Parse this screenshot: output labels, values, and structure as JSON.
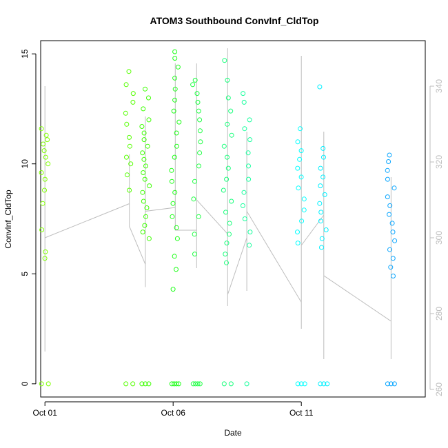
{
  "chart_data": {
    "type": "scatter",
    "title": "ATOM3 Southbound ConvInf_CldTop",
    "xlabel": "Date",
    "ylabel": "ConvInf_CldTop",
    "x_axis": {
      "type": "date",
      "range": [
        "2016-09-30T20:00",
        "2016-10-15T20:00"
      ],
      "ticks": [
        {
          "date": "2016-10-01",
          "label": "Oct 01"
        },
        {
          "date": "2016-10-06",
          "label": "Oct 06"
        },
        {
          "date": "2016-10-11",
          "label": "Oct 11"
        }
      ]
    },
    "y_left": {
      "range": [
        -0.6,
        15.6
      ],
      "ticks": [
        0,
        5,
        10,
        15
      ]
    },
    "y_right": {
      "range": [
        258,
        352
      ],
      "ticks": [
        260,
        280,
        300,
        320,
        340
      ],
      "color": "#bdbdbd"
    },
    "grid": false,
    "legend": "none",
    "point_style": "open-circle",
    "clusters": [
      {
        "date": "2016-10-01T00:00",
        "color": "#7fff00",
        "y": [
          5.7,
          6.0,
          7.0,
          8.2,
          8.8,
          9.3,
          9.6,
          10.0,
          10.3,
          10.6,
          10.9,
          11.1,
          11.3,
          11.6
        ],
        "zeros": 2
      },
      {
        "date": "2016-10-04T07:00",
        "color": "#55ff00",
        "y": [
          8.8,
          9.5,
          10.0,
          10.3,
          10.8,
          11.2,
          11.8,
          12.3,
          12.8,
          13.2,
          13.6,
          14.2
        ],
        "zeros": 2
      },
      {
        "date": "2016-10-04T22:00",
        "color": "#3cff00",
        "y": [
          6.6,
          6.9,
          7.2,
          7.6,
          8.0,
          8.3,
          8.7,
          9.0,
          9.3,
          9.6,
          9.9,
          10.2,
          10.5,
          10.8,
          11.1,
          11.4,
          11.7,
          12.0,
          12.5,
          13.0,
          13.4
        ],
        "zeros": 3
      },
      {
        "date": "2016-10-06T02:00",
        "color": "#1cff16",
        "y": [
          4.3,
          5.2,
          5.8,
          6.6,
          7.1,
          7.6,
          8.2,
          8.7,
          9.2,
          9.7,
          10.3,
          10.8,
          11.4,
          11.9,
          12.4,
          12.9,
          13.4,
          13.9,
          14.4,
          14.8,
          15.1
        ],
        "zeros": 4
      },
      {
        "date": "2016-10-06T22:00",
        "color": "#1eff43",
        "y": [
          5.9,
          6.8,
          7.6,
          8.4,
          9.2,
          9.9,
          10.5,
          11.0,
          11.5,
          12.0,
          12.4,
          12.8,
          13.2,
          13.6,
          13.8
        ],
        "zeros": 4
      },
      {
        "date": "2016-10-08T03:00",
        "color": "#16ff7a",
        "y": [
          5.5,
          5.9,
          6.4,
          6.8,
          7.3,
          7.8,
          8.3,
          8.8,
          9.3,
          9.8,
          10.3,
          10.8,
          11.3,
          11.8,
          12.4,
          13.0,
          13.8,
          14.7
        ],
        "zeros": 2
      },
      {
        "date": "2016-10-08T21:00",
        "color": "#19ff9e",
        "y": [
          6.3,
          6.9,
          7.5,
          8.1,
          8.7,
          9.3,
          9.9,
          10.5,
          11.1,
          11.6,
          12.0,
          12.8,
          13.2
        ],
        "zeros": 1
      },
      {
        "date": "2016-10-11T00:00",
        "color": "#00ffff",
        "y": [
          6.4,
          6.9,
          7.4,
          7.9,
          8.4,
          8.9,
          9.4,
          9.8,
          10.2,
          10.6,
          11.0,
          11.6
        ],
        "zeros": 3
      },
      {
        "date": "2016-10-11T21:00",
        "color": "#00f0ff",
        "y": [
          6.2,
          6.6,
          7.0,
          7.4,
          7.8,
          8.2,
          8.6,
          9.0,
          9.4,
          9.8,
          10.3,
          10.7,
          13.5
        ],
        "zeros": 3
      },
      {
        "date": "2016-10-14T12:00",
        "color": "#0aa6ff",
        "y": [
          4.9,
          5.3,
          5.7,
          6.1,
          6.5,
          6.9,
          7.3,
          7.7,
          8.1,
          8.5,
          8.9,
          9.3,
          9.7,
          10.1,
          10.4
        ],
        "zeros": 3
      }
    ],
    "temperature_trace": {
      "axis": "right",
      "color": "#bdbdbd",
      "points": [
        [
          "2016-10-01T00:00",
          312
        ],
        [
          "2016-10-01T00:00",
          270
        ],
        [
          "2016-10-01T00:00",
          340
        ],
        [
          "2016-10-01T00:00",
          300
        ],
        [
          "2016-10-04T07:00",
          309
        ],
        [
          "2016-10-04T07:00",
          322
        ],
        [
          "2016-10-04T07:00",
          303
        ],
        [
          "2016-10-04T22:00",
          293
        ],
        [
          "2016-10-04T22:00",
          332
        ],
        [
          "2016-10-04T22:00",
          287
        ],
        [
          "2016-10-04T22:00",
          316
        ],
        [
          "2016-10-04T22:00",
          307
        ],
        [
          "2016-10-06T02:00",
          308
        ],
        [
          "2016-10-06T02:00",
          346
        ],
        [
          "2016-10-06T02:00",
          319
        ],
        [
          "2016-10-06T02:00",
          302
        ],
        [
          "2016-10-06T22:00",
          302
        ],
        [
          "2016-10-06T22:00",
          346
        ],
        [
          "2016-10-06T22:00",
          292
        ],
        [
          "2016-10-06T22:00",
          310
        ],
        [
          "2016-10-08T03:00",
          301
        ],
        [
          "2016-10-08T03:00",
          350
        ],
        [
          "2016-10-08T03:00",
          282
        ],
        [
          "2016-10-08T03:00",
          285
        ],
        [
          "2016-10-08T21:00",
          300
        ],
        [
          "2016-10-08T21:00",
          328
        ],
        [
          "2016-10-08T21:00",
          286
        ],
        [
          "2016-10-08T21:00",
          307
        ],
        [
          "2016-10-11T00:00",
          283
        ],
        [
          "2016-10-11T00:00",
          348
        ],
        [
          "2016-10-11T00:00",
          276
        ],
        [
          "2016-10-11T00:00",
          298
        ],
        [
          "2016-10-11T21:00",
          306
        ],
        [
          "2016-10-11T21:00",
          328
        ],
        [
          "2016-10-11T21:00",
          268
        ],
        [
          "2016-10-11T21:00",
          290
        ],
        [
          "2016-10-14T12:00",
          278
        ],
        [
          "2016-10-14T12:00",
          316
        ],
        [
          "2016-10-14T12:00",
          268
        ],
        [
          "2016-10-14T12:00",
          292
        ]
      ]
    }
  }
}
